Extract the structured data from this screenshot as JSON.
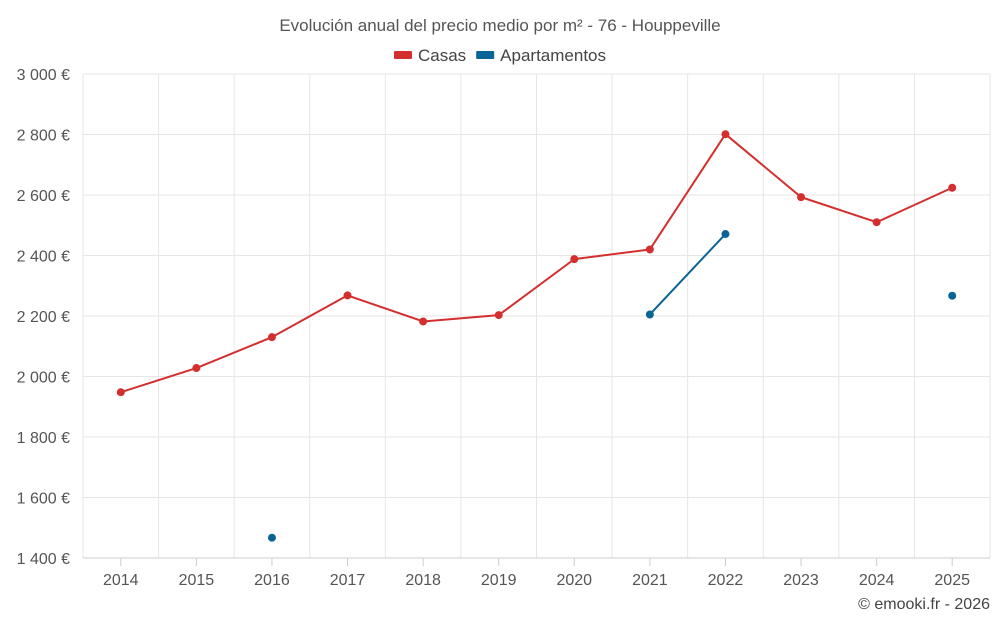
{
  "chart_data": {
    "type": "line",
    "title": "Evolución anual del precio medio por m² - 76 - Houppeville",
    "categories": [
      "2014",
      "2015",
      "2016",
      "2017",
      "2018",
      "2019",
      "2020",
      "2021",
      "2022",
      "2023",
      "2024",
      "2025"
    ],
    "series": [
      {
        "name": "Casas",
        "color": "#d32f2f",
        "values": [
          1948,
          2028,
          2130,
          2268,
          2182,
          2203,
          2388,
          2420,
          2801,
          2593,
          2510,
          2624
        ]
      },
      {
        "name": "Apartamentos",
        "color": "#0b6496",
        "values": [
          null,
          null,
          1467,
          null,
          null,
          null,
          null,
          2205,
          2471,
          null,
          null,
          2267
        ]
      }
    ],
    "ylim": [
      1400,
      3000
    ],
    "yticks": [
      1400,
      1600,
      1800,
      2000,
      2200,
      2400,
      2600,
      2800,
      3000
    ],
    "ytick_labels": [
      "1 400 €",
      "1 600 €",
      "1 800 €",
      "2 000 €",
      "2 200 €",
      "2 400 €",
      "2 600 €",
      "2 800 €",
      "3 000 €"
    ],
    "xlabel": "",
    "ylabel": "",
    "grid": true,
    "legend_position": "top-center",
    "credit": "© emooki.fr - 2026"
  }
}
